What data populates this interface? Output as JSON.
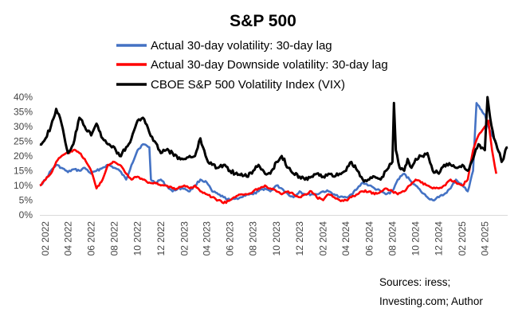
{
  "chart_data": {
    "type": "line",
    "title": "S&P 500",
    "xlabel": "",
    "ylabel": "",
    "ylim": [
      0,
      40
    ],
    "y_ticks": [
      "0%",
      "5%",
      "10%",
      "15%",
      "20%",
      "25%",
      "30%",
      "35%",
      "40%"
    ],
    "x_range": [
      "2022-01-17",
      "2025-05-31"
    ],
    "x_ticks": [
      {
        "date": "2022-02-01",
        "label": "02 2022"
      },
      {
        "date": "2022-04-01",
        "label": "04 2022"
      },
      {
        "date": "2022-06-01",
        "label": "06 2022"
      },
      {
        "date": "2022-08-01",
        "label": "08 2022"
      },
      {
        "date": "2022-10-01",
        "label": "10 2022"
      },
      {
        "date": "2022-12-01",
        "label": "12 2022"
      },
      {
        "date": "2023-02-01",
        "label": "02 2023"
      },
      {
        "date": "2023-04-01",
        "label": "04 2023"
      },
      {
        "date": "2023-06-01",
        "label": "06 2023"
      },
      {
        "date": "2023-08-01",
        "label": "08 2023"
      },
      {
        "date": "2023-10-01",
        "label": "10 2023"
      },
      {
        "date": "2023-12-01",
        "label": "12 2023"
      },
      {
        "date": "2024-02-01",
        "label": "02 2024"
      },
      {
        "date": "2024-04-01",
        "label": "04 2024"
      },
      {
        "date": "2024-06-01",
        "label": "06 2024"
      },
      {
        "date": "2024-08-01",
        "label": "08 2024"
      },
      {
        "date": "2024-10-01",
        "label": "10 2024"
      },
      {
        "date": "2024-12-01",
        "label": "12 2024"
      },
      {
        "date": "2025-02-01",
        "label": "02 2025"
      },
      {
        "date": "2025-04-01",
        "label": "04 2025"
      }
    ],
    "grid": false,
    "legend_position": "top",
    "series": [
      {
        "name": "Actual 30-day volatility: 30-day lag",
        "color": "#4472C4",
        "points": [
          [
            "2022-01-17",
            10
          ],
          [
            "2022-02-01",
            12
          ],
          [
            "2022-02-15",
            15
          ],
          [
            "2022-03-01",
            17
          ],
          [
            "2022-03-15",
            16
          ],
          [
            "2022-04-01",
            14.5
          ],
          [
            "2022-04-15",
            15.5
          ],
          [
            "2022-05-01",
            15
          ],
          [
            "2022-05-15",
            16
          ],
          [
            "2022-06-01",
            14
          ],
          [
            "2022-06-15",
            15
          ],
          [
            "2022-07-01",
            16
          ],
          [
            "2022-07-15",
            17
          ],
          [
            "2022-08-01",
            16
          ],
          [
            "2022-08-15",
            15
          ],
          [
            "2022-09-01",
            12
          ],
          [
            "2022-09-15",
            17
          ],
          [
            "2022-10-01",
            22
          ],
          [
            "2022-10-15",
            24
          ],
          [
            "2022-11-01",
            23
          ],
          [
            "2022-11-05",
            12
          ],
          [
            "2022-11-15",
            11
          ],
          [
            "2022-12-01",
            12
          ],
          [
            "2022-12-15",
            10
          ],
          [
            "2023-01-01",
            8
          ],
          [
            "2023-01-15",
            9
          ],
          [
            "2023-02-01",
            9
          ],
          [
            "2023-02-15",
            8
          ],
          [
            "2023-03-01",
            10
          ],
          [
            "2023-03-15",
            12
          ],
          [
            "2023-04-01",
            11
          ],
          [
            "2023-04-15",
            8
          ],
          [
            "2023-05-01",
            7
          ],
          [
            "2023-05-15",
            6
          ],
          [
            "2023-06-01",
            5
          ],
          [
            "2023-06-15",
            5.5
          ],
          [
            "2023-07-01",
            6
          ],
          [
            "2023-07-15",
            7
          ],
          [
            "2023-08-01",
            7
          ],
          [
            "2023-08-15",
            8
          ],
          [
            "2023-09-01",
            9
          ],
          [
            "2023-09-15",
            8
          ],
          [
            "2023-10-01",
            10
          ],
          [
            "2023-10-15",
            9
          ],
          [
            "2023-11-01",
            7
          ],
          [
            "2023-11-15",
            6
          ],
          [
            "2023-12-01",
            8
          ],
          [
            "2023-12-15",
            7
          ],
          [
            "2024-01-01",
            7
          ],
          [
            "2024-01-15",
            7
          ],
          [
            "2024-02-01",
            8
          ],
          [
            "2024-02-15",
            8
          ],
          [
            "2024-03-01",
            7
          ],
          [
            "2024-03-15",
            6
          ],
          [
            "2024-04-01",
            6
          ],
          [
            "2024-04-15",
            7
          ],
          [
            "2024-05-01",
            9
          ],
          [
            "2024-05-15",
            11
          ],
          [
            "2024-06-01",
            10
          ],
          [
            "2024-06-15",
            9
          ],
          [
            "2024-07-01",
            8
          ],
          [
            "2024-07-15",
            7
          ],
          [
            "2024-08-01",
            8
          ],
          [
            "2024-08-15",
            12
          ],
          [
            "2024-09-01",
            14
          ],
          [
            "2024-09-15",
            12
          ],
          [
            "2024-10-01",
            10
          ],
          [
            "2024-10-15",
            8
          ],
          [
            "2024-11-01",
            6
          ],
          [
            "2024-11-15",
            5
          ],
          [
            "2024-12-01",
            6
          ],
          [
            "2024-12-15",
            7
          ],
          [
            "2025-01-01",
            9
          ],
          [
            "2025-01-15",
            12
          ],
          [
            "2025-02-01",
            10
          ],
          [
            "2025-02-15",
            8
          ],
          [
            "2025-03-01",
            15
          ],
          [
            "2025-03-10",
            38
          ],
          [
            "2025-03-20",
            36
          ],
          [
            "2025-04-01",
            34
          ],
          [
            "2025-04-10",
            30
          ],
          [
            "2025-04-20",
            27
          ],
          [
            "2025-05-01",
            24
          ]
        ]
      },
      {
        "name": "Actual 30-day Downside volatility: 30-day lag",
        "color": "#FF0000",
        "points": [
          [
            "2022-01-17",
            10
          ],
          [
            "2022-02-01",
            12
          ],
          [
            "2022-02-15",
            14
          ],
          [
            "2022-03-01",
            18
          ],
          [
            "2022-03-15",
            20
          ],
          [
            "2022-04-01",
            21
          ],
          [
            "2022-04-15",
            22
          ],
          [
            "2022-05-01",
            21
          ],
          [
            "2022-05-15",
            19
          ],
          [
            "2022-06-01",
            15
          ],
          [
            "2022-06-15",
            9
          ],
          [
            "2022-07-01",
            12
          ],
          [
            "2022-07-15",
            17
          ],
          [
            "2022-08-01",
            18
          ],
          [
            "2022-08-15",
            17
          ],
          [
            "2022-09-01",
            14
          ],
          [
            "2022-09-15",
            12
          ],
          [
            "2022-10-01",
            13
          ],
          [
            "2022-10-15",
            12
          ],
          [
            "2022-11-01",
            11
          ],
          [
            "2022-11-15",
            11
          ],
          [
            "2022-12-01",
            10
          ],
          [
            "2022-12-15",
            10
          ],
          [
            "2023-01-01",
            9
          ],
          [
            "2023-01-15",
            9
          ],
          [
            "2023-02-01",
            10
          ],
          [
            "2023-02-15",
            9
          ],
          [
            "2023-03-01",
            10
          ],
          [
            "2023-03-15",
            8
          ],
          [
            "2023-04-01",
            7
          ],
          [
            "2023-04-15",
            6
          ],
          [
            "2023-05-01",
            5
          ],
          [
            "2023-05-15",
            4
          ],
          [
            "2023-06-01",
            5
          ],
          [
            "2023-06-15",
            6
          ],
          [
            "2023-07-01",
            7
          ],
          [
            "2023-07-15",
            7
          ],
          [
            "2023-08-01",
            8
          ],
          [
            "2023-08-15",
            9
          ],
          [
            "2023-09-01",
            10
          ],
          [
            "2023-09-15",
            9
          ],
          [
            "2023-10-01",
            8
          ],
          [
            "2023-10-15",
            7
          ],
          [
            "2023-11-01",
            8
          ],
          [
            "2023-11-15",
            7
          ],
          [
            "2023-12-01",
            6
          ],
          [
            "2023-12-15",
            7
          ],
          [
            "2024-01-01",
            8
          ],
          [
            "2024-01-15",
            6
          ],
          [
            "2024-02-01",
            5
          ],
          [
            "2024-02-15",
            7
          ],
          [
            "2024-03-01",
            6
          ],
          [
            "2024-03-15",
            5
          ],
          [
            "2024-04-01",
            5
          ],
          [
            "2024-04-15",
            6
          ],
          [
            "2024-05-01",
            7
          ],
          [
            "2024-05-15",
            8
          ],
          [
            "2024-06-01",
            8
          ],
          [
            "2024-06-15",
            7
          ],
          [
            "2024-07-01",
            8
          ],
          [
            "2024-07-15",
            9
          ],
          [
            "2024-08-01",
            8
          ],
          [
            "2024-08-15",
            7
          ],
          [
            "2024-09-01",
            8
          ],
          [
            "2024-09-15",
            10
          ],
          [
            "2024-10-01",
            12
          ],
          [
            "2024-10-15",
            11
          ],
          [
            "2024-11-01",
            10
          ],
          [
            "2024-11-15",
            9
          ],
          [
            "2024-12-01",
            9
          ],
          [
            "2024-12-15",
            10
          ],
          [
            "2025-01-01",
            12
          ],
          [
            "2025-01-15",
            11
          ],
          [
            "2025-02-01",
            10
          ],
          [
            "2025-02-15",
            12
          ],
          [
            "2025-03-01",
            22
          ],
          [
            "2025-03-15",
            27
          ],
          [
            "2025-04-01",
            30
          ],
          [
            "2025-04-10",
            32
          ],
          [
            "2025-04-20",
            22
          ],
          [
            "2025-05-01",
            14
          ]
        ]
      },
      {
        "name": "CBOE S&P 500 Volatility Index (VIX)",
        "color": "#000000",
        "points": [
          [
            "2022-01-17",
            24
          ],
          [
            "2022-02-01",
            26
          ],
          [
            "2022-02-15",
            30
          ],
          [
            "2022-03-01",
            36
          ],
          [
            "2022-03-15",
            31
          ],
          [
            "2022-04-01",
            21
          ],
          [
            "2022-04-15",
            24
          ],
          [
            "2022-05-01",
            33
          ],
          [
            "2022-05-15",
            30
          ],
          [
            "2022-06-01",
            27
          ],
          [
            "2022-06-15",
            31
          ],
          [
            "2022-07-01",
            26
          ],
          [
            "2022-07-15",
            24
          ],
          [
            "2022-08-01",
            23
          ],
          [
            "2022-08-15",
            20
          ],
          [
            "2022-09-01",
            23
          ],
          [
            "2022-09-15",
            26
          ],
          [
            "2022-10-01",
            32
          ],
          [
            "2022-10-15",
            33
          ],
          [
            "2022-11-01",
            28
          ],
          [
            "2022-11-15",
            25
          ],
          [
            "2022-12-01",
            21
          ],
          [
            "2022-12-15",
            22
          ],
          [
            "2023-01-01",
            21
          ],
          [
            "2023-01-15",
            19
          ],
          [
            "2023-02-01",
            19
          ],
          [
            "2023-02-15",
            20
          ],
          [
            "2023-03-01",
            20
          ],
          [
            "2023-03-15",
            26
          ],
          [
            "2023-04-01",
            19
          ],
          [
            "2023-04-15",
            17
          ],
          [
            "2023-05-01",
            16
          ],
          [
            "2023-05-15",
            17
          ],
          [
            "2023-06-01",
            15
          ],
          [
            "2023-06-15",
            14
          ],
          [
            "2023-07-01",
            14
          ],
          [
            "2023-07-15",
            13
          ],
          [
            "2023-08-01",
            15
          ],
          [
            "2023-08-15",
            17
          ],
          [
            "2023-09-01",
            14
          ],
          [
            "2023-09-15",
            14
          ],
          [
            "2023-10-01",
            18
          ],
          [
            "2023-10-15",
            20
          ],
          [
            "2023-11-01",
            16
          ],
          [
            "2023-11-15",
            14
          ],
          [
            "2023-12-01",
            13
          ],
          [
            "2023-12-15",
            12
          ],
          [
            "2024-01-01",
            13
          ],
          [
            "2024-01-15",
            14
          ],
          [
            "2024-02-01",
            13
          ],
          [
            "2024-02-15",
            14
          ],
          [
            "2024-03-01",
            13
          ],
          [
            "2024-03-15",
            14
          ],
          [
            "2024-04-01",
            15
          ],
          [
            "2024-04-15",
            18
          ],
          [
            "2024-05-01",
            15
          ],
          [
            "2024-05-15",
            12
          ],
          [
            "2024-06-01",
            12
          ],
          [
            "2024-06-15",
            13
          ],
          [
            "2024-07-01",
            12
          ],
          [
            "2024-07-15",
            15
          ],
          [
            "2024-08-01",
            18
          ],
          [
            "2024-08-05",
            38
          ],
          [
            "2024-08-10",
            22
          ],
          [
            "2024-08-20",
            16
          ],
          [
            "2024-09-01",
            15
          ],
          [
            "2024-09-10",
            19
          ],
          [
            "2024-09-20",
            16
          ],
          [
            "2024-10-01",
            19
          ],
          [
            "2024-10-15",
            20
          ],
          [
            "2024-11-01",
            21
          ],
          [
            "2024-11-15",
            15
          ],
          [
            "2024-12-01",
            14
          ],
          [
            "2024-12-15",
            17
          ],
          [
            "2025-01-01",
            17
          ],
          [
            "2025-01-15",
            16
          ],
          [
            "2025-02-01",
            17
          ],
          [
            "2025-02-15",
            15
          ],
          [
            "2025-03-01",
            19
          ],
          [
            "2025-03-15",
            24
          ],
          [
            "2025-04-01",
            22
          ],
          [
            "2025-04-08",
            40
          ],
          [
            "2025-04-15",
            33
          ],
          [
            "2025-04-25",
            26
          ],
          [
            "2025-05-01",
            24
          ],
          [
            "2025-05-10",
            21
          ],
          [
            "2025-05-15",
            18
          ],
          [
            "2025-05-20",
            19
          ],
          [
            "2025-05-25",
            22
          ],
          [
            "2025-05-31",
            23
          ]
        ]
      }
    ]
  },
  "source_lines": [
    "Sources: iress;",
    "Investing.com; Author"
  ]
}
